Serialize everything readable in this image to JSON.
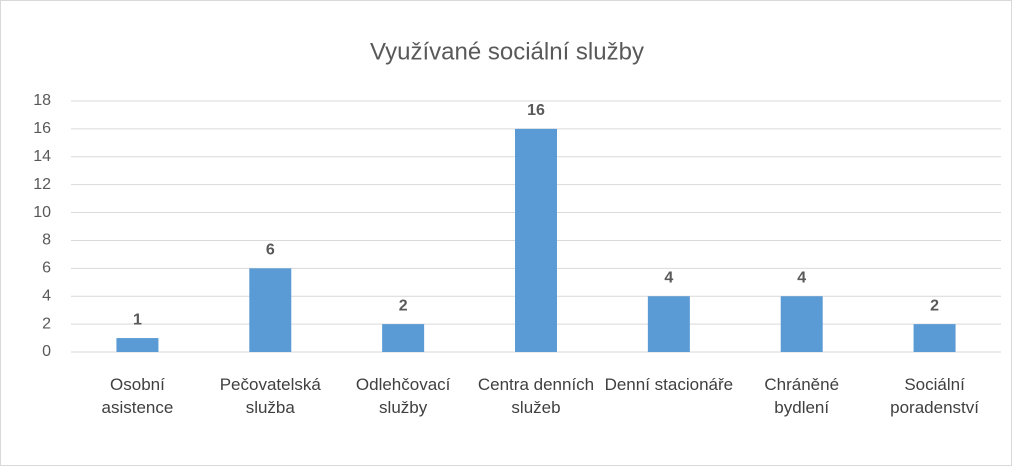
{
  "chart_data": {
    "type": "bar",
    "title": "Využívané sociální služby",
    "categories": [
      "Osobní asistence",
      "Pečovatelská služba",
      "Odlehčovací služby",
      "Centra denních služeb",
      "Denní stacionáře",
      "Chráněné bydlení",
      "Sociální poradenství"
    ],
    "values": [
      1,
      6,
      2,
      16,
      4,
      4,
      2
    ],
    "color": "#5b9bd5",
    "ylim": [
      0,
      18
    ],
    "yticks": [
      0,
      2,
      4,
      6,
      8,
      10,
      12,
      14,
      16,
      18
    ],
    "grid": true
  }
}
